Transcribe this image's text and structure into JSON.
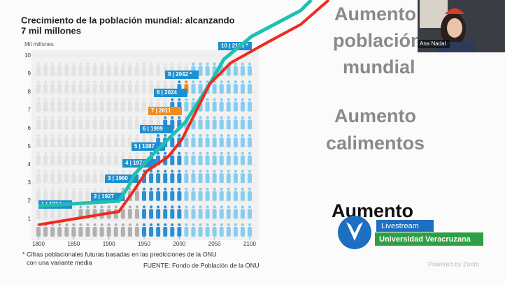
{
  "slide": {
    "chart": {
      "title_line1": "Crecimiento de la población mundial: alcanzando",
      "title_line2": "7 mil millones",
      "y_axis_label": "Mil millones",
      "yticks": [
        1,
        2,
        3,
        4,
        5,
        6,
        7,
        8,
        9,
        10
      ],
      "ylim": [
        0,
        10
      ],
      "xticks": [
        1800,
        1850,
        1900,
        1950,
        2000,
        2050,
        2100
      ],
      "xlim": [
        1800,
        2100
      ],
      "callouts": [
        "1 | 1804",
        "2 | 1927",
        "3 | 1960",
        "4 | 1974",
        "5 | 1987",
        "6 | 1999",
        "7 | 2011",
        "8 | 2024",
        "9 | 2042 *",
        "10 | 2100 *"
      ],
      "footnote_line1": "* Cifras poblacionales futuras basadas en las predicciones de la ONU",
      "footnote_line2": "con una variante media",
      "source": "FUENTE: Fondo de Población de la ONU"
    },
    "heading1_line1": "Aumento",
    "heading1_line2": "población",
    "heading1_line3": "mundial",
    "heading2_line1": "Aumento",
    "heading2_line2": "calimentos",
    "heading3": "Aumento"
  },
  "video": {
    "participant": "Ana Nadal"
  },
  "overlay": {
    "badge_top": "Livestream",
    "badge_bottom": "Universidad Veracruzana",
    "watermark": "Powered by Zoom"
  }
}
